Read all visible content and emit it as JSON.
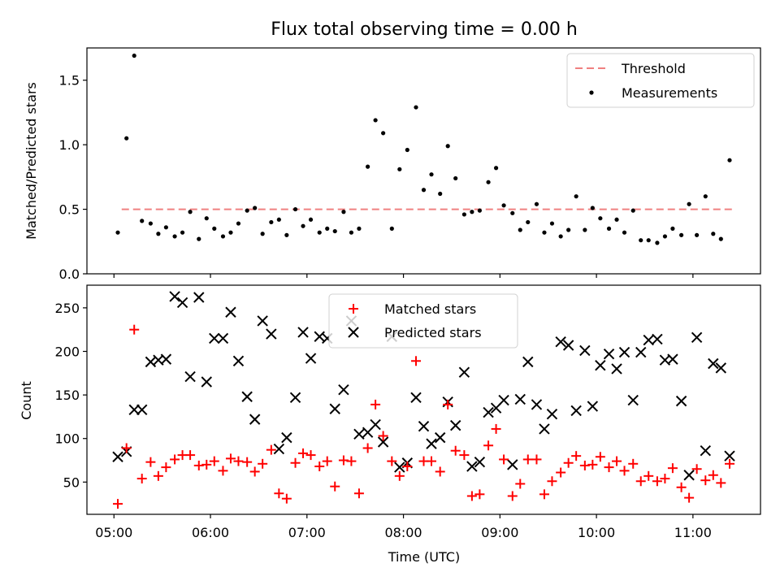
{
  "chart_data": [
    {
      "type": "scatter",
      "title": "Flux total observing time = 0.00 h",
      "ylabel": "Matched/Predicted stars",
      "xlabel": "",
      "ylim": [
        0,
        1.75
      ],
      "yticks": [
        "0.0",
        "0.5",
        "1.0",
        "1.5"
      ],
      "legend_position": "top-right",
      "threshold": {
        "name": "Threshold",
        "y": 0.5,
        "x_start": 5.08,
        "x_end": 11.41,
        "color": "#f08080",
        "style": "dashed"
      },
      "series": [
        {
          "name": "Measurements",
          "color": "#000000",
          "marker": "dot",
          "points": [
            [
              5.04,
              0.32
            ],
            [
              5.13,
              1.05
            ],
            [
              5.21,
              1.69
            ],
            [
              5.29,
              0.41
            ],
            [
              5.38,
              0.39
            ],
            [
              5.46,
              0.31
            ],
            [
              5.54,
              0.36
            ],
            [
              5.63,
              0.29
            ],
            [
              5.71,
              0.32
            ],
            [
              5.79,
              0.48
            ],
            [
              5.88,
              0.27
            ],
            [
              5.96,
              0.43
            ],
            [
              6.04,
              0.35
            ],
            [
              6.13,
              0.29
            ],
            [
              6.21,
              0.32
            ],
            [
              6.29,
              0.39
            ],
            [
              6.38,
              0.49
            ],
            [
              6.46,
              0.51
            ],
            [
              6.54,
              0.31
            ],
            [
              6.63,
              0.4
            ],
            [
              6.71,
              0.42
            ],
            [
              6.79,
              0.3
            ],
            [
              6.88,
              0.5
            ],
            [
              6.96,
              0.37
            ],
            [
              7.04,
              0.42
            ],
            [
              7.13,
              0.32
            ],
            [
              7.21,
              0.35
            ],
            [
              7.29,
              0.33
            ],
            [
              7.38,
              0.48
            ],
            [
              7.46,
              0.32
            ],
            [
              7.54,
              0.35
            ],
            [
              7.63,
              0.83
            ],
            [
              7.71,
              1.19
            ],
            [
              7.79,
              1.09
            ],
            [
              7.88,
              0.35
            ],
            [
              7.96,
              0.81
            ],
            [
              8.04,
              0.96
            ],
            [
              8.13,
              1.29
            ],
            [
              8.21,
              0.65
            ],
            [
              8.29,
              0.77
            ],
            [
              8.38,
              0.62
            ],
            [
              8.46,
              0.99
            ],
            [
              8.54,
              0.74
            ],
            [
              8.63,
              0.46
            ],
            [
              8.71,
              0.48
            ],
            [
              8.79,
              0.49
            ],
            [
              8.88,
              0.71
            ],
            [
              8.96,
              0.82
            ],
            [
              9.04,
              0.53
            ],
            [
              9.13,
              0.47
            ],
            [
              9.21,
              0.34
            ],
            [
              9.29,
              0.4
            ],
            [
              9.38,
              0.54
            ],
            [
              9.46,
              0.32
            ],
            [
              9.54,
              0.39
            ],
            [
              9.63,
              0.29
            ],
            [
              9.71,
              0.34
            ],
            [
              9.79,
              0.6
            ],
            [
              9.88,
              0.34
            ],
            [
              9.96,
              0.51
            ],
            [
              10.04,
              0.43
            ],
            [
              10.13,
              0.35
            ],
            [
              10.21,
              0.42
            ],
            [
              10.29,
              0.32
            ],
            [
              10.38,
              0.49
            ],
            [
              10.46,
              0.26
            ],
            [
              10.54,
              0.26
            ],
            [
              10.63,
              0.24
            ],
            [
              10.71,
              0.29
            ],
            [
              10.79,
              0.35
            ],
            [
              10.88,
              0.3
            ],
            [
              10.96,
              0.54
            ],
            [
              11.04,
              0.3
            ],
            [
              11.13,
              0.6
            ],
            [
              11.21,
              0.31
            ],
            [
              11.29,
              0.27
            ],
            [
              11.38,
              0.88
            ]
          ]
        }
      ]
    },
    {
      "type": "scatter",
      "title": "",
      "xlabel": "Time (UTC)",
      "ylabel": "Count",
      "xlim": [
        4.72,
        11.7
      ],
      "ylim": [
        13,
        276
      ],
      "xticks": [
        {
          "value": 5,
          "label": "05:00"
        },
        {
          "value": 6,
          "label": "06:00"
        },
        {
          "value": 7,
          "label": "07:00"
        },
        {
          "value": 8,
          "label": "08:00"
        },
        {
          "value": 9,
          "label": "09:00"
        },
        {
          "value": 10,
          "label": "10:00"
        },
        {
          "value": 11,
          "label": "11:00"
        }
      ],
      "yticks": [
        "50",
        "100",
        "150",
        "200",
        "250"
      ],
      "legend_position": "top-center",
      "series": [
        {
          "name": "Matched stars",
          "color": "#ff0000",
          "marker": "plus",
          "points": [
            [
              5.04,
              25
            ],
            [
              5.13,
              89
            ],
            [
              5.21,
              225
            ],
            [
              5.29,
              54
            ],
            [
              5.38,
              73
            ],
            [
              5.46,
              57
            ],
            [
              5.54,
              67
            ],
            [
              5.63,
              76
            ],
            [
              5.71,
              81
            ],
            [
              5.79,
              81
            ],
            [
              5.88,
              69
            ],
            [
              5.96,
              70
            ],
            [
              6.04,
              74
            ],
            [
              6.13,
              63
            ],
            [
              6.21,
              77
            ],
            [
              6.29,
              74
            ],
            [
              6.38,
              73
            ],
            [
              6.46,
              62
            ],
            [
              6.54,
              71
            ],
            [
              6.63,
              87
            ],
            [
              6.71,
              37
            ],
            [
              6.79,
              31
            ],
            [
              6.88,
              72
            ],
            [
              6.96,
              83
            ],
            [
              7.04,
              81
            ],
            [
              7.13,
              68
            ],
            [
              7.21,
              74
            ],
            [
              7.29,
              45
            ],
            [
              7.38,
              75
            ],
            [
              7.46,
              74
            ],
            [
              7.54,
              37
            ],
            [
              7.63,
              89
            ],
            [
              7.71,
              139
            ],
            [
              7.79,
              103
            ],
            [
              7.88,
              74
            ],
            [
              7.96,
              57
            ],
            [
              8.04,
              68
            ],
            [
              8.13,
              189
            ],
            [
              8.21,
              74
            ],
            [
              8.29,
              74
            ],
            [
              8.38,
              62
            ],
            [
              8.46,
              139
            ],
            [
              8.54,
              86
            ],
            [
              8.63,
              81
            ],
            [
              8.71,
              34
            ],
            [
              8.79,
              36
            ],
            [
              8.88,
              92
            ],
            [
              8.96,
              111
            ],
            [
              9.04,
              76
            ],
            [
              9.13,
              34
            ],
            [
              9.21,
              48
            ],
            [
              9.29,
              76
            ],
            [
              9.38,
              76
            ],
            [
              9.46,
              36
            ],
            [
              9.54,
              51
            ],
            [
              9.63,
              61
            ],
            [
              9.71,
              72
            ],
            [
              9.79,
              80
            ],
            [
              9.88,
              69
            ],
            [
              9.96,
              70
            ],
            [
              10.04,
              79
            ],
            [
              10.13,
              67
            ],
            [
              10.21,
              74
            ],
            [
              10.29,
              63
            ],
            [
              10.38,
              71
            ],
            [
              10.46,
              51
            ],
            [
              10.54,
              57
            ],
            [
              10.63,
              51
            ],
            [
              10.71,
              54
            ],
            [
              10.79,
              66
            ],
            [
              10.88,
              44
            ],
            [
              10.96,
              32
            ],
            [
              11.04,
              65
            ],
            [
              11.13,
              52
            ],
            [
              11.21,
              58
            ],
            [
              11.29,
              49
            ],
            [
              11.38,
              71
            ]
          ]
        },
        {
          "name": "Predicted stars",
          "color": "#000000",
          "marker": "x",
          "points": [
            [
              5.04,
              79
            ],
            [
              5.13,
              85
            ],
            [
              5.21,
              133
            ],
            [
              5.29,
              133
            ],
            [
              5.38,
              188
            ],
            [
              5.46,
              190
            ],
            [
              5.54,
              191
            ],
            [
              5.63,
              263
            ],
            [
              5.71,
              256
            ],
            [
              5.79,
              171
            ],
            [
              5.88,
              262
            ],
            [
              5.96,
              165
            ],
            [
              6.04,
              215
            ],
            [
              6.13,
              215
            ],
            [
              6.21,
              245
            ],
            [
              6.29,
              189
            ],
            [
              6.38,
              148
            ],
            [
              6.46,
              122
            ],
            [
              6.54,
              235
            ],
            [
              6.63,
              220
            ],
            [
              6.71,
              88
            ],
            [
              6.79,
              101
            ],
            [
              6.88,
              147
            ],
            [
              6.96,
              222
            ],
            [
              7.04,
              192
            ],
            [
              7.13,
              217
            ],
            [
              7.21,
              215
            ],
            [
              7.29,
              134
            ],
            [
              7.38,
              156
            ],
            [
              7.46,
              235
            ],
            [
              7.54,
              105
            ],
            [
              7.63,
              107
            ],
            [
              7.71,
              116
            ],
            [
              7.79,
              96
            ],
            [
              7.88,
              217
            ],
            [
              7.96,
              67
            ],
            [
              8.04,
              72
            ],
            [
              8.13,
              147
            ],
            [
              8.21,
              114
            ],
            [
              8.29,
              94
            ],
            [
              8.38,
              101
            ],
            [
              8.46,
              142
            ],
            [
              8.54,
              115
            ],
            [
              8.63,
              176
            ],
            [
              8.71,
              68
            ],
            [
              8.79,
              73
            ],
            [
              8.88,
              130
            ],
            [
              8.96,
              135
            ],
            [
              9.04,
              144
            ],
            [
              9.13,
              70
            ],
            [
              9.21,
              145
            ],
            [
              9.29,
              188
            ],
            [
              9.38,
              139
            ],
            [
              9.46,
              111
            ],
            [
              9.54,
              128
            ],
            [
              9.63,
              211
            ],
            [
              9.71,
              207
            ],
            [
              9.79,
              132
            ],
            [
              9.88,
              201
            ],
            [
              9.96,
              137
            ],
            [
              10.04,
              184
            ],
            [
              10.13,
              197
            ],
            [
              10.21,
              180
            ],
            [
              10.29,
              199
            ],
            [
              10.38,
              144
            ],
            [
              10.46,
              199
            ],
            [
              10.54,
              213
            ],
            [
              10.63,
              214
            ],
            [
              10.71,
              190
            ],
            [
              10.79,
              191
            ],
            [
              10.88,
              143
            ],
            [
              10.96,
              58
            ],
            [
              11.04,
              216
            ],
            [
              11.13,
              86
            ],
            [
              11.21,
              186
            ],
            [
              11.29,
              181
            ],
            [
              11.38,
              80
            ]
          ]
        }
      ]
    }
  ]
}
